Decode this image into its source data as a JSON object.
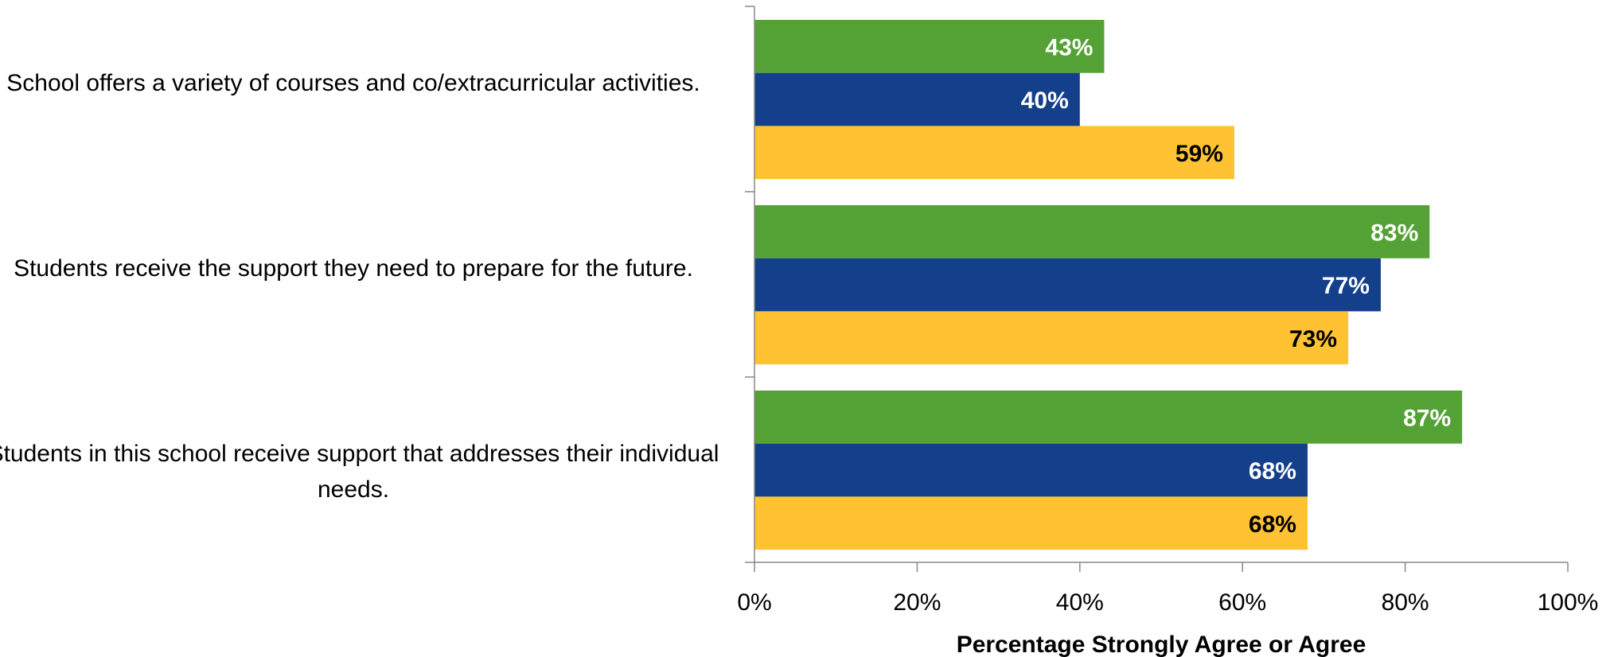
{
  "chart_data": {
    "type": "bar",
    "orientation": "horizontal",
    "categories": [
      "School offers a variety of courses and co/extracurricular activities.",
      "Students receive the support they need to prepare for the future.",
      "Students in this school receive support that addresses their individual needs."
    ],
    "series": [
      {
        "values": [
          43,
          83,
          87
        ],
        "labels": [
          "43%",
          "83%",
          "87%"
        ],
        "color": "#54a235",
        "label_color": "#ffffff"
      },
      {
        "values": [
          40,
          77,
          68
        ],
        "labels": [
          "40%",
          "77%",
          "68%"
        ],
        "color": "#143f8a",
        "label_color": "#ffffff"
      },
      {
        "values": [
          59,
          73,
          68
        ],
        "labels": [
          "59%",
          "73%",
          "68%"
        ],
        "color": "#fec232",
        "label_color": "#000000"
      }
    ],
    "x_ticks": [
      "0%",
      "20%",
      "40%",
      "60%",
      "80%",
      "100%"
    ],
    "xlim": [
      0,
      100
    ],
    "xlabel": "Percentage Strongly Agree or Agree",
    "title": "",
    "grid": false,
    "legend": "none"
  }
}
